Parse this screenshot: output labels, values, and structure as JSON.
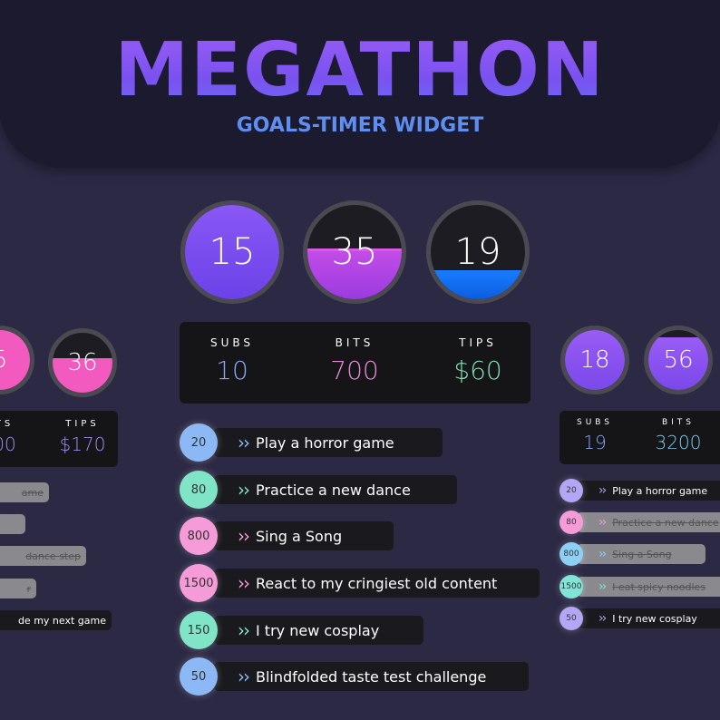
{
  "header": {
    "title": "MEGATHON",
    "subtitle": "GOALS-TIMER WIDGET"
  },
  "center": {
    "circles": [
      15,
      35,
      19
    ],
    "stats": [
      {
        "label": "SUBS",
        "value": 10
      },
      {
        "label": "BITS",
        "value": 700
      },
      {
        "label": "TIPS",
        "value": "$60"
      }
    ],
    "goals": [
      {
        "amount": 20,
        "text": "Play a horror game"
      },
      {
        "amount": 80,
        "text": "Practice a new dance"
      },
      {
        "amount": 800,
        "text": "Sing a Song"
      },
      {
        "amount": 1500,
        "text": "React to my cringiest old content"
      },
      {
        "amount": 150,
        "text": "I try new cosplay"
      },
      {
        "amount": 50,
        "text": "Blindfolded taste test challenge"
      }
    ]
  },
  "left": {
    "circles": [
      5,
      36
    ],
    "stats": [
      {
        "label": "TS",
        "value": "00"
      },
      {
        "label": "TIPS",
        "value": "$170"
      }
    ],
    "goals": [
      "ame",
      "dance step",
      "r",
      "de my next game"
    ]
  },
  "right": {
    "circles": [
      18,
      56
    ],
    "stats": [
      {
        "label": "SUBS",
        "value": 19
      },
      {
        "label": "BITS",
        "value": 3200
      }
    ],
    "goals": [
      {
        "amount": 20,
        "text": "Play a horror game"
      },
      {
        "amount": 80,
        "text": "Practice a new dance"
      },
      {
        "amount": 800,
        "text": "Sing a Song"
      },
      {
        "amount": 1500,
        "text": "I eat spicy noodles"
      },
      {
        "amount": 50,
        "text": "I try new cosplay"
      }
    ]
  }
}
